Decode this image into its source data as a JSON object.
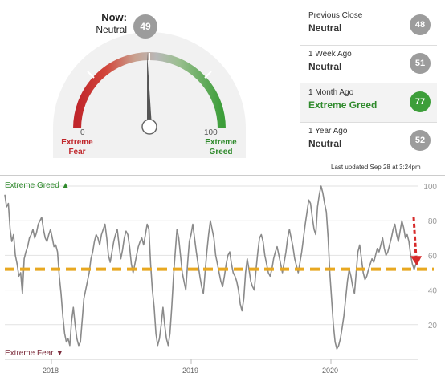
{
  "gauge": {
    "now_label": "Now:",
    "now_value": "Neutral",
    "now_score": 49,
    "min_label": "0",
    "max_label": "100",
    "low_label": [
      "Extreme",
      "Fear"
    ],
    "high_label": [
      "Extreme",
      "Greed"
    ],
    "colors": {
      "fear": "#c0262b",
      "neutral": "#b3b3b3",
      "greed": "#3d9e3a",
      "needle": "#555555"
    }
  },
  "history": [
    {
      "label": "Previous Close",
      "value": "Neutral",
      "score": "48",
      "highlight": false
    },
    {
      "label": "1 Week Ago",
      "value": "Neutral",
      "score": "51",
      "highlight": false
    },
    {
      "label": "1 Month Ago",
      "value": "Extreme Greed",
      "score": "77",
      "highlight": true
    },
    {
      "label": "1 Year Ago",
      "value": "Neutral",
      "score": "52",
      "highlight": false
    }
  ],
  "last_updated": "Last updated Sep 28 at 3:24pm",
  "chart_labels": {
    "greed": "Extreme Greed ▲",
    "fear": "Extreme Fear ▼"
  },
  "chart_data": {
    "type": "line",
    "x_ticks": [
      "2018",
      "2019",
      "2020"
    ],
    "y_ticks": [
      20,
      40,
      60,
      80,
      100
    ],
    "ylim": [
      0,
      100
    ],
    "grid": true,
    "reference_line": {
      "y": 52,
      "style": "dashed",
      "color": "#e8a820"
    },
    "annotation": {
      "type": "arrow",
      "from": 82,
      "to": 55,
      "color": "#d62a2a"
    },
    "line_color": "#8a8a8a",
    "series": [
      {
        "values": [
          95,
          88,
          90,
          75,
          68,
          72,
          60,
          55,
          48,
          50,
          38,
          58,
          62,
          65,
          70,
          72,
          75,
          70,
          73,
          78,
          80,
          82,
          75,
          70,
          68,
          72,
          75,
          70,
          65,
          66,
          62,
          48,
          38,
          25,
          15,
          10,
          12,
          8,
          22,
          30,
          20,
          12,
          8,
          10,
          22,
          35,
          40,
          45,
          50,
          58,
          62,
          68,
          72,
          70,
          66,
          72,
          75,
          78,
          70,
          60,
          56,
          62,
          68,
          72,
          75,
          66,
          58,
          63,
          70,
          74,
          72,
          65,
          55,
          50,
          55,
          60,
          65,
          68,
          70,
          66,
          72,
          78,
          75,
          55,
          40,
          30,
          15,
          8,
          12,
          20,
          30,
          20,
          12,
          8,
          15,
          30,
          48,
          62,
          75,
          70,
          60,
          50,
          45,
          40,
          55,
          68,
          72,
          78,
          70,
          62,
          55,
          48,
          42,
          38,
          50,
          62,
          72,
          80,
          75,
          70,
          60,
          55,
          50,
          45,
          42,
          48,
          55,
          60,
          62,
          55,
          50,
          48,
          45,
          40,
          32,
          28,
          35,
          50,
          58,
          52,
          45,
          42,
          40,
          52,
          62,
          70,
          72,
          68,
          60,
          55,
          50,
          48,
          52,
          58,
          62,
          65,
          60,
          55,
          50,
          56,
          62,
          70,
          75,
          70,
          65,
          58,
          54,
          50,
          56,
          62,
          70,
          78,
          85,
          92,
          90,
          82,
          75,
          72,
          88,
          95,
          100,
          96,
          90,
          85,
          70,
          50,
          35,
          20,
          10,
          6,
          8,
          12,
          18,
          25,
          35,
          45,
          52,
          48,
          42,
          38,
          50,
          62,
          66,
          58,
          50,
          46,
          48,
          52,
          55,
          58,
          56,
          60,
          64,
          62,
          66,
          70,
          64,
          60,
          62,
          66,
          70,
          75,
          78,
          72,
          68,
          74,
          80,
          76,
          70,
          72,
          68,
          60,
          55,
          52,
          55,
          58
        ]
      }
    ]
  }
}
